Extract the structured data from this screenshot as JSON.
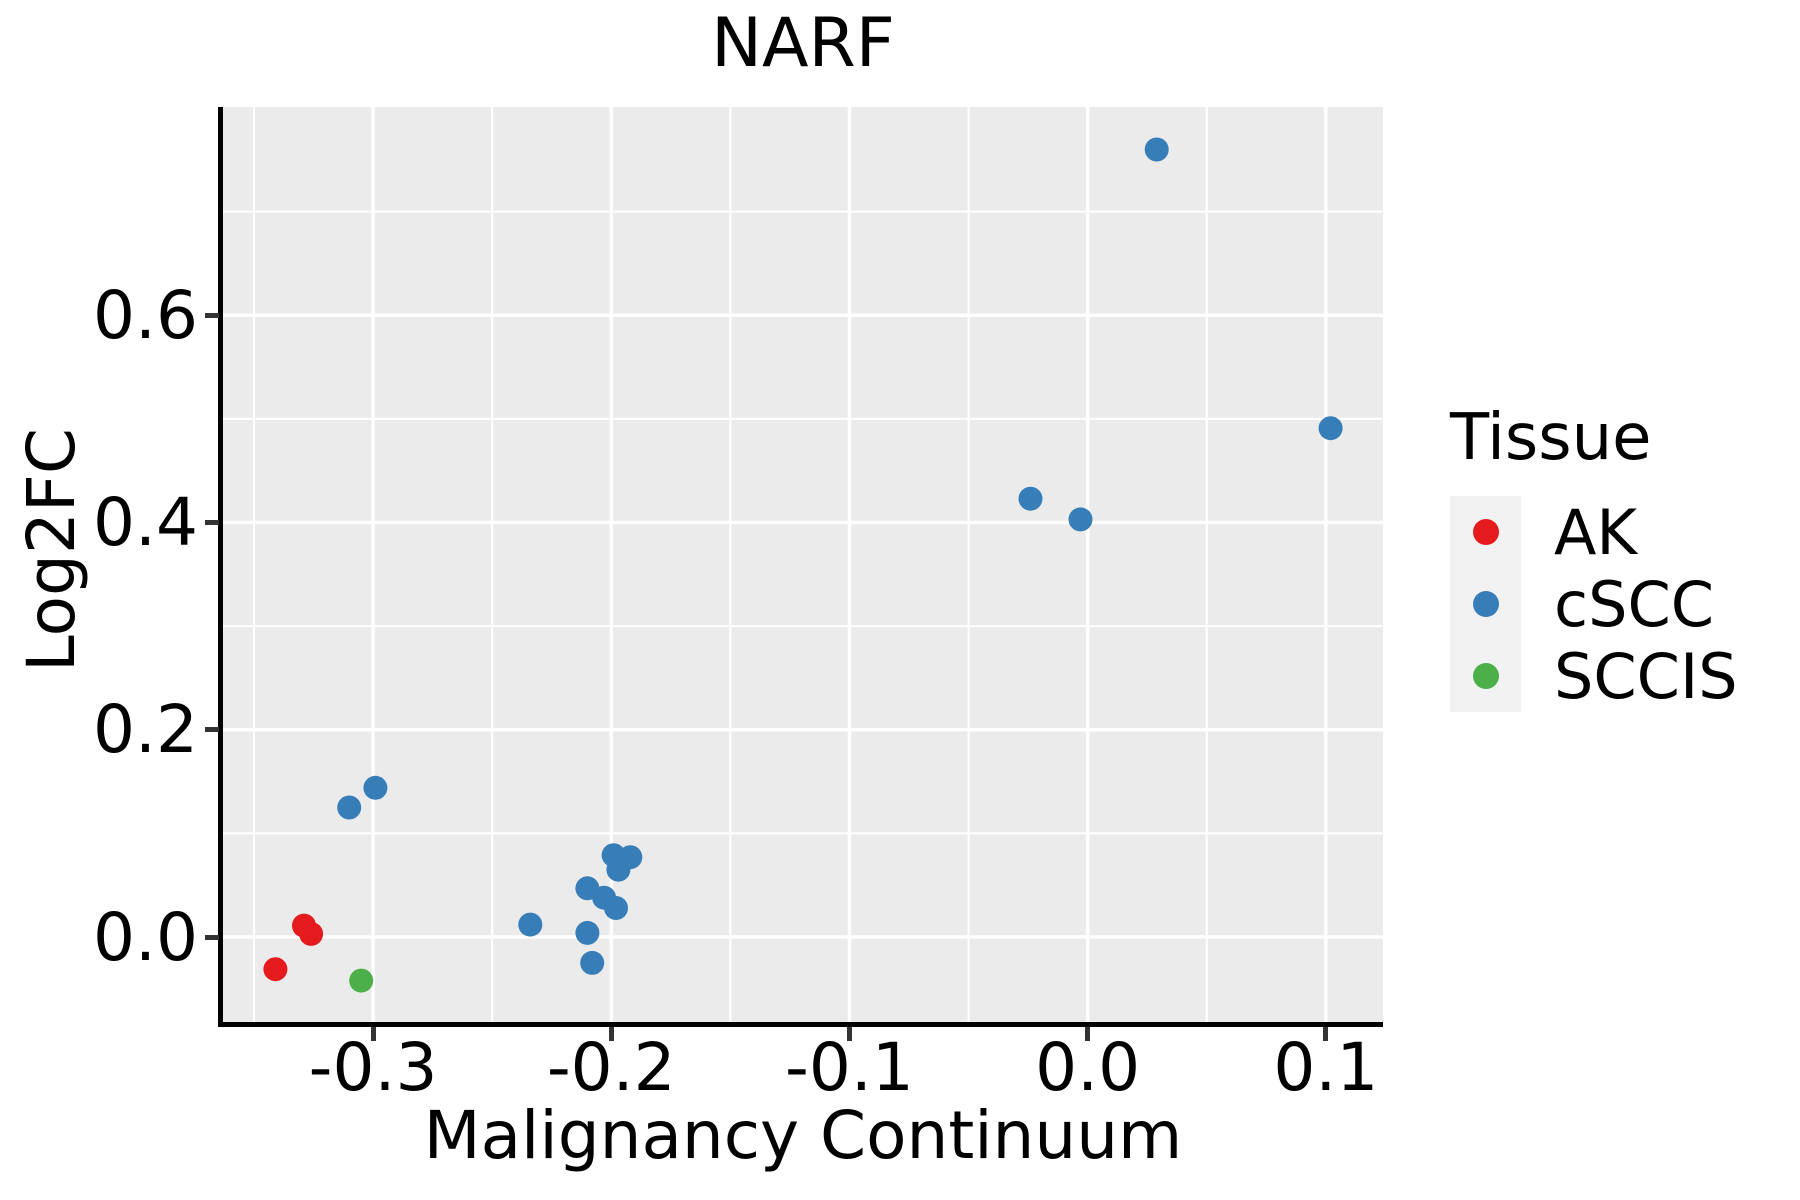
{
  "title": "NARF",
  "axes": {
    "x": {
      "label": "Malignancy Continuum",
      "major_ticks": [
        -0.3,
        -0.2,
        -0.1,
        0.0,
        0.1
      ],
      "tick_labels": [
        "-0.3",
        "-0.2",
        "-0.1",
        "0.0",
        "0.1"
      ],
      "minor_ticks": [
        -0.35,
        -0.25,
        -0.15,
        -0.05,
        0.05
      ],
      "range": [
        -0.363,
        0.124
      ]
    },
    "y": {
      "label": "Log2FC",
      "major_ticks": [
        0.0,
        0.2,
        0.4,
        0.6
      ],
      "tick_labels": [
        "0.0",
        "0.2",
        "0.4",
        "0.6"
      ],
      "minor_ticks": [
        0.1,
        0.3,
        0.5,
        0.7
      ],
      "range": [
        -0.082,
        0.801
      ]
    }
  },
  "legend": {
    "title": "Tissue",
    "entries": [
      {
        "label": "AK",
        "color": "#E41A1C"
      },
      {
        "label": "cSCC",
        "color": "#377EB8"
      },
      {
        "label": "SCCIS",
        "color": "#4DAF4A"
      }
    ]
  },
  "chart_data": {
    "type": "scatter",
    "title": "NARF",
    "xlabel": "Malignancy Continuum",
    "ylabel": "Log2FC",
    "xlim": [
      -0.363,
      0.124
    ],
    "ylim": [
      -0.082,
      0.801
    ],
    "grid": "white major+minor gridlines on grey panel",
    "legend_position": "right",
    "point_radius_px": 12,
    "series": [
      {
        "name": "AK",
        "color": "#E41A1C",
        "points": [
          [
            -0.341,
            -0.031
          ],
          [
            -0.329,
            0.011
          ],
          [
            -0.326,
            0.003
          ]
        ]
      },
      {
        "name": "cSCC",
        "color": "#377EB8",
        "points": [
          [
            -0.31,
            0.125
          ],
          [
            -0.299,
            0.144
          ],
          [
            -0.234,
            0.012
          ],
          [
            -0.21,
            0.047
          ],
          [
            -0.203,
            0.038
          ],
          [
            -0.198,
            0.028
          ],
          [
            -0.21,
            0.004
          ],
          [
            -0.208,
            -0.025
          ],
          [
            -0.199,
            0.079
          ],
          [
            -0.192,
            0.077
          ],
          [
            -0.197,
            0.065
          ],
          [
            -0.024,
            0.423
          ],
          [
            -0.003,
            0.403
          ],
          [
            0.029,
            0.76
          ],
          [
            0.102,
            0.491
          ]
        ]
      },
      {
        "name": "SCCIS",
        "color": "#4DAF4A",
        "points": [
          [
            -0.305,
            -0.042
          ]
        ]
      }
    ]
  },
  "colors": {
    "panel_background": "#EBEBEB",
    "gridline": "#FFFFFF",
    "axis_line": "#000000",
    "tick_mark": "#333333",
    "text": "#000000",
    "legend_key_background": "#F2F2F2",
    "page_background": "#FFFFFF"
  }
}
